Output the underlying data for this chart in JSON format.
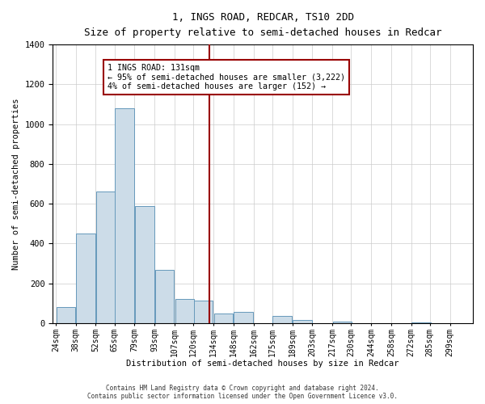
{
  "title": "1, INGS ROAD, REDCAR, TS10 2DD",
  "subtitle": "Size of property relative to semi-detached houses in Redcar",
  "xlabel": "Distribution of semi-detached houses by size in Redcar",
  "ylabel": "Number of semi-detached properties",
  "footer_line1": "Contains HM Land Registry data © Crown copyright and database right 2024.",
  "footer_line2": "Contains public sector information licensed under the Open Government Licence v3.0.",
  "annotation_line1": "1 INGS ROAD: 131sqm",
  "annotation_line2": "← 95% of semi-detached houses are smaller (3,222)",
  "annotation_line3": "4% of semi-detached houses are larger (152) →",
  "property_size": 131,
  "bar_color": "#ccdce8",
  "bar_edge_color": "#6699bb",
  "vline_color": "#990000",
  "background_color": "#ffffff",
  "grid_color": "#cccccc",
  "bins_left_edges": [
    24,
    38,
    52,
    65,
    79,
    93,
    107,
    120,
    134,
    148,
    162,
    175,
    189,
    203,
    217,
    230,
    244,
    258,
    272,
    285,
    299
  ],
  "bin_width": 14,
  "bin_labels": [
    "24sqm",
    "38sqm",
    "52sqm",
    "65sqm",
    "79sqm",
    "93sqm",
    "107sqm",
    "120sqm",
    "134sqm",
    "148sqm",
    "162sqm",
    "175sqm",
    "189sqm",
    "203sqm",
    "217sqm",
    "230sqm",
    "244sqm",
    "258sqm",
    "272sqm",
    "285sqm",
    "299sqm"
  ],
  "counts": [
    80,
    450,
    660,
    1080,
    590,
    270,
    120,
    115,
    50,
    55,
    0,
    35,
    15,
    0,
    10,
    0,
    0,
    0,
    5,
    0,
    0
  ],
  "ylim": [
    0,
    1400
  ],
  "yticks": [
    0,
    200,
    400,
    600,
    800,
    1000,
    1200,
    1400
  ]
}
